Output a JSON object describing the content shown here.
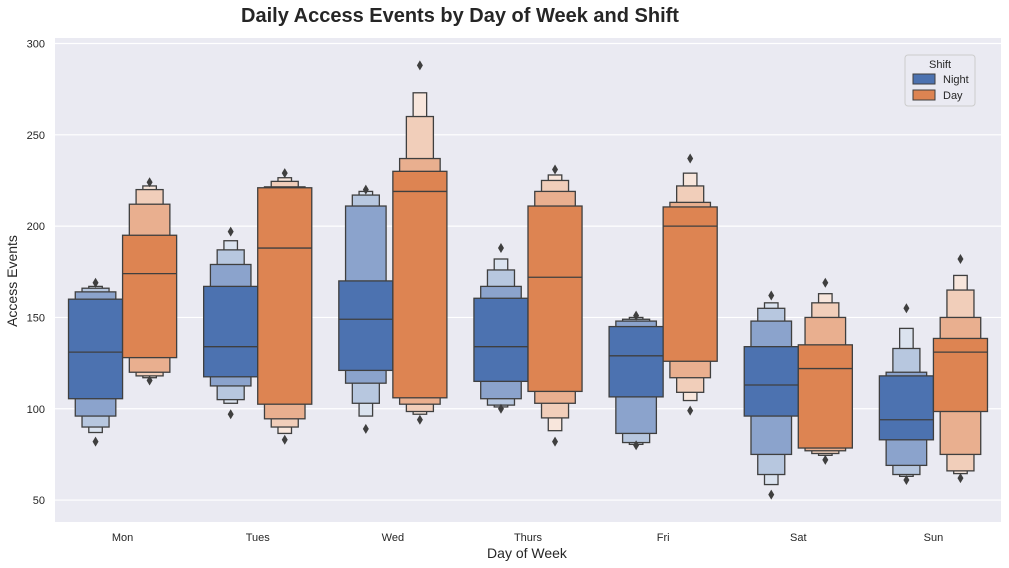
{
  "chart_data": {
    "type": "boxen",
    "title": "Daily Access Events by Day of Week and Shift",
    "xlabel": "Day of Week",
    "ylabel": "Access Events",
    "categories": [
      "Mon",
      "Tues",
      "Wed",
      "Thurs",
      "Fri",
      "Sat",
      "Sun"
    ],
    "ylim": [
      38,
      303
    ],
    "yticks": [
      50,
      100,
      150,
      200,
      250,
      300
    ],
    "grid": true,
    "legend": {
      "title": "Shift",
      "position": "top-right"
    },
    "series": [
      {
        "name": "Night",
        "color": "#4c72b0",
        "boxes": [
          {
            "median": 131,
            "levels": [
              [
                105.5,
                160
              ],
              [
                96,
                164
              ],
              [
                90,
                166
              ],
              [
                87,
                167
              ]
            ],
            "outliers": [
              82,
              169
            ]
          },
          {
            "median": 134,
            "levels": [
              [
                117.5,
                167
              ],
              [
                112.5,
                179
              ],
              [
                105,
                187
              ],
              [
                103,
                192
              ]
            ],
            "outliers": [
              97,
              197
            ]
          },
          {
            "median": 149,
            "levels": [
              [
                121,
                170
              ],
              [
                114,
                211
              ],
              [
                103,
                217
              ],
              [
                96,
                219
              ]
            ],
            "outliers": [
              89,
              220
            ]
          },
          {
            "median": 134,
            "levels": [
              [
                115,
                160.5
              ],
              [
                105.5,
                167
              ],
              [
                102,
                176
              ],
              [
                101,
                182
              ]
            ],
            "outliers": [
              100,
              188
            ]
          },
          {
            "median": 129,
            "levels": [
              [
                106.5,
                145
              ],
              [
                86.5,
                148
              ],
              [
                81.5,
                149
              ],
              [
                80.5,
                150
              ]
            ],
            "outliers": [
              80,
              151
            ]
          },
          {
            "median": 113,
            "levels": [
              [
                96,
                134
              ],
              [
                75,
                148
              ],
              [
                64,
                155
              ],
              [
                58.5,
                158
              ]
            ],
            "outliers": [
              53,
              162
            ]
          },
          {
            "median": 94,
            "levels": [
              [
                83,
                118
              ],
              [
                69,
                120
              ],
              [
                64,
                133
              ],
              [
                63,
                144
              ]
            ],
            "outliers": [
              61,
              155
            ]
          }
        ]
      },
      {
        "name": "Day",
        "color": "#dd8452",
        "boxes": [
          {
            "median": 174,
            "levels": [
              [
                128,
                195
              ],
              [
                120,
                212
              ],
              [
                118,
                220
              ],
              [
                117,
                222
              ]
            ],
            "outliers": [
              115.5,
              224
            ]
          },
          {
            "median": 188,
            "levels": [
              [
                102.5,
                221
              ],
              [
                94.5,
                221.5
              ],
              [
                90,
                224.5
              ],
              [
                86.5,
                226.5
              ]
            ],
            "outliers": [
              83,
              229
            ]
          },
          {
            "median": 219,
            "levels": [
              [
                106,
                230
              ],
              [
                102.5,
                237
              ],
              [
                98.5,
                260
              ],
              [
                97,
                273
              ]
            ],
            "outliers": [
              94,
              288
            ]
          },
          {
            "median": 172,
            "levels": [
              [
                109.5,
                211
              ],
              [
                103,
                219
              ],
              [
                95,
                225
              ],
              [
                88,
                228
              ]
            ],
            "outliers": [
              82,
              231
            ]
          },
          {
            "median": 200,
            "levels": [
              [
                126,
                210.5
              ],
              [
                117,
                213
              ],
              [
                109,
                222
              ],
              [
                104.5,
                229
              ]
            ],
            "outliers": [
              99,
              237
            ]
          },
          {
            "median": 122,
            "levels": [
              [
                78.5,
                135
              ],
              [
                77,
                150
              ],
              [
                75.5,
                158
              ],
              [
                74.5,
                163
              ]
            ],
            "outliers": [
              72,
              169
            ]
          },
          {
            "median": 131,
            "levels": [
              [
                98.5,
                138.5
              ],
              [
                75,
                150
              ],
              [
                66,
                165
              ],
              [
                64.5,
                173
              ]
            ],
            "outliers": [
              62,
              182
            ]
          }
        ]
      }
    ]
  }
}
